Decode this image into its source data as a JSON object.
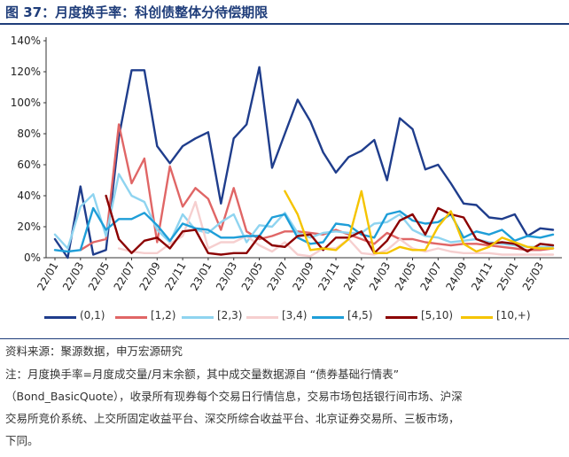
{
  "header": {
    "title": "图 37：月度换手率：科创债整体分待偿期限"
  },
  "footer": {
    "source": "资料来源：聚源数据，申万宏源研究",
    "note": "注：月度换手率=月度成交量/月末余额，其中成交量数据源自 “债券基础行情表”\n（Bond_BasicQuote），收录所有现券每个交易日行情信息，交易市场包括银行间市场、沪深\n交易所竞价系统、上交所固定收益平台、深交所综合收益平台、北京证券交易所、三板市场，\n下同。"
  },
  "colors": {
    "(0,1)": "#1f3d8c",
    "[1,2)": "#e06666",
    "[2,3)": "#8fd4f0",
    "[3,4)": "#f6cfcf",
    "[4,5)": "#1e9ed8",
    "[5,10)": "#8b0000",
    "[10,+)": "#f5c400"
  },
  "chart_data": {
    "type": "line",
    "title": "月度换手率：科创债整体分待偿期限",
    "ylim": [
      0,
      140
    ],
    "y_unit": "%",
    "yticks": [
      "0%",
      "20%",
      "40%",
      "60%",
      "80%",
      "100%",
      "120%",
      "140%"
    ],
    "xtick_labels": [
      "22/01",
      "22/03",
      "22/05",
      "22/07",
      "22/09",
      "22/11",
      "23/01",
      "23/03",
      "23/05",
      "23/07",
      "23/09",
      "23/11",
      "24/01",
      "24/03",
      "24/05",
      "24/07",
      "24/09",
      "24/11",
      "25/01",
      "25/03"
    ],
    "x": [
      "22/01",
      "22/02",
      "22/03",
      "22/04",
      "22/05",
      "22/06",
      "22/07",
      "22/08",
      "22/09",
      "22/10",
      "22/11",
      "22/12",
      "23/01",
      "23/02",
      "23/03",
      "23/04",
      "23/05",
      "23/06",
      "23/07",
      "23/08",
      "23/09",
      "23/10",
      "23/11",
      "23/12",
      "24/01",
      "24/02",
      "24/03",
      "24/04",
      "24/05",
      "24/06",
      "24/07",
      "24/08",
      "24/09",
      "24/10",
      "24/11",
      "24/12",
      "25/01",
      "25/02",
      "25/03",
      "25/04"
    ],
    "legend_position": "bottom",
    "series": [
      {
        "name": "(0,1)",
        "values": [
          12,
          0,
          46,
          2,
          5,
          78,
          121,
          121,
          72,
          61,
          72,
          77,
          81,
          35,
          77,
          86,
          123,
          58,
          80,
          102,
          88,
          68,
          55,
          65,
          69,
          76,
          50,
          90,
          83,
          57,
          60,
          48,
          35,
          34,
          26,
          25,
          28,
          14,
          19,
          18
        ]
      },
      {
        "name": "[1,2)",
        "values": [
          null,
          null,
          5,
          10,
          12,
          86,
          48,
          64,
          10,
          59,
          33,
          45,
          38,
          18,
          45,
          17,
          12,
          14,
          17,
          17,
          16,
          15,
          18,
          15,
          12,
          9,
          16,
          12,
          12,
          10,
          9,
          8,
          9,
          9,
          8,
          7,
          6,
          5,
          5,
          6
        ]
      },
      {
        "name": "[2,3)",
        "values": [
          15,
          6,
          33,
          41,
          14,
          54,
          40,
          36,
          18,
          10,
          28,
          18,
          16,
          23,
          28,
          10,
          21,
          20,
          29,
          16,
          13,
          16,
          17,
          16,
          16,
          22,
          23,
          28,
          18,
          14,
          13,
          10,
          11,
          12,
          10,
          9,
          8,
          7,
          7,
          7
        ]
      },
      {
        "name": "[3,4)",
        "values": [
          null,
          null,
          null,
          null,
          null,
          6,
          4,
          3,
          3,
          9,
          14,
          36,
          6,
          10,
          10,
          14,
          8,
          4,
          10,
          2,
          1,
          6,
          6,
          12,
          3,
          2,
          5,
          12,
          6,
          4,
          6,
          4,
          3,
          3,
          3,
          2,
          2,
          2,
          2,
          2
        ]
      },
      {
        "name": "[4,5)",
        "values": [
          5,
          4,
          5,
          32,
          18,
          25,
          25,
          29,
          21,
          11,
          22,
          19,
          18,
          13,
          13,
          14,
          14,
          26,
          28,
          13,
          9,
          10,
          22,
          21,
          15,
          13,
          28,
          30,
          24,
          22,
          23,
          28,
          13,
          17,
          15,
          18,
          11,
          14,
          13,
          15
        ]
      },
      {
        "name": "[5,10)",
        "values": [
          null,
          null,
          null,
          null,
          40,
          12,
          3,
          11,
          13,
          6,
          17,
          18,
          3,
          2,
          3,
          3,
          14,
          8,
          7,
          14,
          15,
          5,
          13,
          13,
          17,
          3,
          11,
          24,
          28,
          15,
          32,
          28,
          26,
          12,
          9,
          10,
          9,
          4,
          9,
          8
        ]
      },
      {
        "name": "[10,+)",
        "values": [
          null,
          null,
          null,
          null,
          null,
          null,
          null,
          null,
          null,
          null,
          null,
          null,
          null,
          null,
          null,
          null,
          null,
          null,
          43,
          28,
          5,
          6,
          5,
          12,
          43,
          3,
          3,
          7,
          5,
          5,
          20,
          30,
          9,
          4,
          7,
          13,
          10,
          7,
          6,
          6
        ]
      }
    ]
  }
}
